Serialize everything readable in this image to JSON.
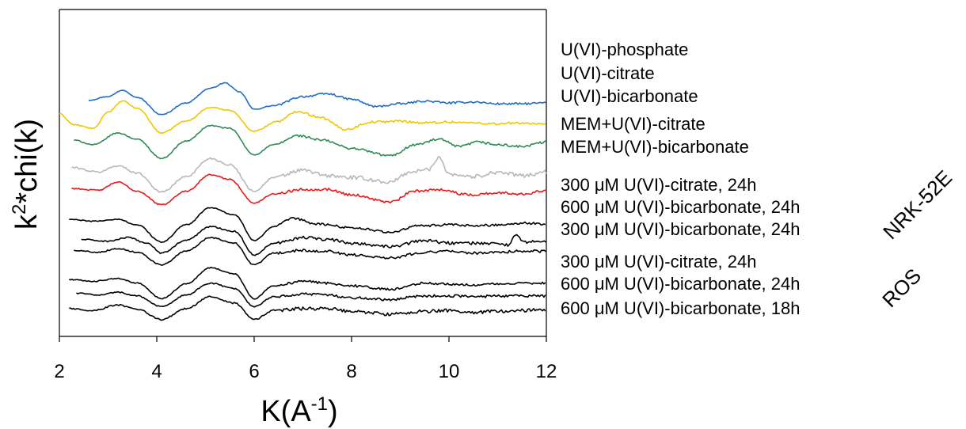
{
  "chart_data": {
    "type": "line",
    "xlabel": "K(A",
    "xlabel_sup": "-1",
    "xlabel_end": ")",
    "ylabel": "k",
    "ylabel_sup": "2",
    "ylabel_end": "*chi(k)",
    "xlim": [
      2,
      12
    ],
    "xticks": [
      "2",
      "4",
      "6",
      "8",
      "10",
      "12"
    ],
    "y_ticks_shown": false,
    "grid": false,
    "groups": [
      {
        "name": "NRK-52E"
      },
      {
        "name": "ROS"
      }
    ],
    "series": [
      {
        "name": "U(VI)-phosphate",
        "color": "#1F6FC5",
        "start": 2.6,
        "offset": 9.9,
        "noise": 0.03,
        "points": [
          [
            2.6,
            0.25
          ],
          [
            3.0,
            0.45
          ],
          [
            3.3,
            0.8
          ],
          [
            3.6,
            0.4
          ],
          [
            4.1,
            -0.55
          ],
          [
            4.6,
            0.1
          ],
          [
            5.1,
            0.9
          ],
          [
            5.4,
            1.2
          ],
          [
            5.7,
            0.7
          ],
          [
            6.0,
            -0.25
          ],
          [
            6.4,
            -0.05
          ],
          [
            7.0,
            0.45
          ],
          [
            7.5,
            0.6
          ],
          [
            8.0,
            0.3
          ],
          [
            8.5,
            -0.1
          ],
          [
            9.0,
            0.05
          ],
          [
            9.5,
            0.2
          ],
          [
            10,
            0.1
          ],
          [
            10.5,
            0.15
          ],
          [
            11,
            0.05
          ],
          [
            11.5,
            0.05
          ],
          [
            12,
            0.1
          ]
        ]
      },
      {
        "name": "U(VI)-citrate",
        "color": "#F2C500",
        "start": 2.0,
        "offset": 8.8,
        "noise": 0.035,
        "points": [
          [
            2.0,
            0.6
          ],
          [
            2.3,
            0.0
          ],
          [
            2.7,
            -0.2
          ],
          [
            3.0,
            0.7
          ],
          [
            3.3,
            1.3
          ],
          [
            3.6,
            0.9
          ],
          [
            4.1,
            -0.45
          ],
          [
            4.6,
            0.2
          ],
          [
            5.1,
            0.95
          ],
          [
            5.5,
            0.8
          ],
          [
            6.0,
            -0.35
          ],
          [
            6.5,
            0.2
          ],
          [
            6.9,
            0.75
          ],
          [
            7.3,
            0.45
          ],
          [
            7.9,
            -0.25
          ],
          [
            8.4,
            0.15
          ],
          [
            9.0,
            0.2
          ],
          [
            9.5,
            0.1
          ],
          [
            10,
            0.15
          ],
          [
            10.5,
            0.1
          ],
          [
            11,
            0.05
          ],
          [
            11.5,
            0.1
          ],
          [
            12,
            0.0
          ]
        ]
      },
      {
        "name": "U(VI)-bicarbonate",
        "color": "#2E8B57",
        "start": 2.3,
        "offset": 7.8,
        "noise": 0.035,
        "points": [
          [
            2.3,
            0.15
          ],
          [
            2.7,
            -0.1
          ],
          [
            3.2,
            0.55
          ],
          [
            3.6,
            0.2
          ],
          [
            4.1,
            -0.85
          ],
          [
            4.6,
            0.1
          ],
          [
            5.1,
            0.95
          ],
          [
            5.5,
            0.8
          ],
          [
            6.0,
            -0.65
          ],
          [
            6.4,
            -0.1
          ],
          [
            6.9,
            0.4
          ],
          [
            7.4,
            0.15
          ],
          [
            8.0,
            -0.3
          ],
          [
            8.8,
            -0.7
          ],
          [
            9.3,
            -0.1
          ],
          [
            9.8,
            0.2
          ],
          [
            10.2,
            -0.2
          ],
          [
            10.6,
            0.05
          ],
          [
            11,
            -0.1
          ],
          [
            11.5,
            -0.2
          ],
          [
            12,
            0.05
          ]
        ]
      },
      {
        "name": "MEM+U(VI)-citrate",
        "color": "#B8B8B8",
        "start": 2.25,
        "offset": 6.2,
        "noise": 0.06,
        "points": [
          [
            2.25,
            0.25
          ],
          [
            2.8,
            0.0
          ],
          [
            3.2,
            0.35
          ],
          [
            3.6,
            -0.05
          ],
          [
            4.1,
            -1.1
          ],
          [
            4.6,
            -0.25
          ],
          [
            5.1,
            0.75
          ],
          [
            5.5,
            0.4
          ],
          [
            6.0,
            -1.05
          ],
          [
            6.4,
            -0.3
          ],
          [
            7.0,
            0.1
          ],
          [
            7.5,
            -0.2
          ],
          [
            8.0,
            -0.3
          ],
          [
            8.8,
            -0.55
          ],
          [
            9.2,
            0.0
          ],
          [
            9.6,
            0.15
          ],
          [
            9.8,
            0.85
          ],
          [
            10.0,
            -0.1
          ],
          [
            10.5,
            -0.25
          ],
          [
            11,
            0.0
          ],
          [
            11.5,
            -0.2
          ],
          [
            12,
            0.0
          ]
        ]
      },
      {
        "name": "MEM+U(VI)-bicarbonate",
        "color": "#E8191B",
        "start": 2.25,
        "offset": 5.2,
        "noise": 0.04,
        "points": [
          [
            2.25,
            0.1
          ],
          [
            2.8,
            0.0
          ],
          [
            3.2,
            0.45
          ],
          [
            3.6,
            -0.05
          ],
          [
            4.1,
            -0.8
          ],
          [
            4.6,
            -0.05
          ],
          [
            5.1,
            0.85
          ],
          [
            5.5,
            0.6
          ],
          [
            6.0,
            -0.7
          ],
          [
            6.4,
            -0.2
          ],
          [
            7.0,
            0.05
          ],
          [
            7.5,
            0.05
          ],
          [
            8.0,
            -0.25
          ],
          [
            8.8,
            -0.65
          ],
          [
            9.3,
            -0.05
          ],
          [
            9.8,
            0.05
          ],
          [
            10.4,
            -0.25
          ],
          [
            11,
            -0.15
          ],
          [
            11.5,
            -0.2
          ],
          [
            12,
            0.0
          ]
        ]
      },
      {
        "name": "300 μM U(VI)-citrate, 24h",
        "color": "#000000",
        "start": 2.2,
        "offset": 3.3,
        "noise": 0.035,
        "points": [
          [
            2.2,
            0.3
          ],
          [
            2.7,
            0.2
          ],
          [
            3.2,
            0.3
          ],
          [
            3.6,
            0.0
          ],
          [
            4.1,
            -0.95
          ],
          [
            4.6,
            0.0
          ],
          [
            5.1,
            0.95
          ],
          [
            5.6,
            0.55
          ],
          [
            6.0,
            -0.85
          ],
          [
            6.4,
            -0.1
          ],
          [
            6.8,
            0.35
          ],
          [
            7.3,
            0.05
          ],
          [
            8.0,
            -0.15
          ],
          [
            8.8,
            -0.4
          ],
          [
            9.4,
            -0.05
          ],
          [
            10,
            0.0
          ],
          [
            10.5,
            -0.05
          ],
          [
            11,
            0.0
          ],
          [
            11.5,
            0.1
          ],
          [
            12,
            0.05
          ]
        ]
      },
      {
        "name": "600 μM U(VI)-bicarbonate, 24h",
        "color": "#000000",
        "start": 2.45,
        "offset": 2.4,
        "noise": 0.045,
        "points": [
          [
            2.45,
            0.1
          ],
          [
            3.0,
            0.0
          ],
          [
            3.4,
            0.2
          ],
          [
            3.8,
            -0.1
          ],
          [
            4.1,
            -0.65
          ],
          [
            4.6,
            0.05
          ],
          [
            5.1,
            0.8
          ],
          [
            5.6,
            0.55
          ],
          [
            6.0,
            -0.75
          ],
          [
            6.4,
            -0.1
          ],
          [
            7.0,
            0.2
          ],
          [
            7.5,
            0.1
          ],
          [
            8.0,
            -0.1
          ],
          [
            8.8,
            -0.3
          ],
          [
            9.5,
            0.05
          ],
          [
            10,
            -0.1
          ],
          [
            10.6,
            -0.1
          ],
          [
            11.2,
            -0.2
          ],
          [
            11.4,
            0.35
          ],
          [
            11.5,
            -0.05
          ],
          [
            12,
            0.0
          ]
        ]
      },
      {
        "name": "300 μM U(VI)-bicarbonate, 24h",
        "color": "#000000",
        "start": 2.3,
        "offset": 1.8,
        "noise": 0.04,
        "points": [
          [
            2.3,
            0.1
          ],
          [
            2.8,
            0.0
          ],
          [
            3.2,
            0.2
          ],
          [
            3.6,
            0.0
          ],
          [
            4.1,
            -0.7
          ],
          [
            4.6,
            0.05
          ],
          [
            5.1,
            0.8
          ],
          [
            5.6,
            0.5
          ],
          [
            6.0,
            -0.7
          ],
          [
            6.4,
            -0.05
          ],
          [
            7.0,
            0.1
          ],
          [
            7.5,
            0.05
          ],
          [
            8.0,
            -0.15
          ],
          [
            8.8,
            -0.3
          ],
          [
            9.5,
            0.0
          ],
          [
            10,
            0.05
          ],
          [
            10.5,
            -0.05
          ],
          [
            11,
            0.0
          ],
          [
            11.5,
            0.05
          ],
          [
            12,
            0.05
          ]
        ]
      },
      {
        "name": "300 μM U(VI)-citrate, 24h",
        "color": "#000000",
        "start": 2.2,
        "offset": 0.1,
        "noise": 0.035,
        "points": [
          [
            2.2,
            0.2
          ],
          [
            2.7,
            0.1
          ],
          [
            3.2,
            0.25
          ],
          [
            3.6,
            0.0
          ],
          [
            4.1,
            -0.85
          ],
          [
            4.6,
            -0.05
          ],
          [
            5.1,
            0.85
          ],
          [
            5.6,
            0.5
          ],
          [
            6.0,
            -0.85
          ],
          [
            6.4,
            -0.15
          ],
          [
            7.0,
            0.1
          ],
          [
            7.5,
            0.0
          ],
          [
            8.0,
            -0.15
          ],
          [
            8.8,
            -0.35
          ],
          [
            9.5,
            0.0
          ],
          [
            10,
            -0.05
          ],
          [
            10.5,
            -0.1
          ],
          [
            11,
            -0.05
          ],
          [
            11.5,
            0.0
          ],
          [
            12,
            0.0
          ]
        ]
      },
      {
        "name": "600 μM U(VI)-bicarbonate, 24h",
        "color": "#000000",
        "start": 2.35,
        "offset": -0.6,
        "noise": 0.04,
        "points": [
          [
            2.35,
            0.15
          ],
          [
            2.8,
            0.05
          ],
          [
            3.2,
            0.2
          ],
          [
            3.6,
            0.0
          ],
          [
            4.1,
            -0.6
          ],
          [
            4.6,
            0.05
          ],
          [
            5.1,
            0.7
          ],
          [
            5.6,
            0.4
          ],
          [
            6.0,
            -0.6
          ],
          [
            6.4,
            -0.05
          ],
          [
            7.0,
            0.1
          ],
          [
            7.5,
            0.05
          ],
          [
            8.0,
            -0.1
          ],
          [
            8.8,
            -0.2
          ],
          [
            9.5,
            0.0
          ],
          [
            10,
            0.0
          ],
          [
            10.5,
            -0.05
          ],
          [
            11,
            0.0
          ],
          [
            11.5,
            0.0
          ],
          [
            12,
            0.0
          ]
        ]
      },
      {
        "name": "600 μM U(VI)-bicarbonate, 18h",
        "color": "#000000",
        "start": 2.2,
        "offset": -1.35,
        "noise": 0.05,
        "points": [
          [
            2.2,
            0.05
          ],
          [
            2.7,
            -0.05
          ],
          [
            3.2,
            0.25
          ],
          [
            3.6,
            0.0
          ],
          [
            4.1,
            -0.55
          ],
          [
            4.6,
            0.05
          ],
          [
            5.1,
            0.7
          ],
          [
            5.6,
            0.35
          ],
          [
            6.0,
            -0.55
          ],
          [
            6.4,
            -0.05
          ],
          [
            7.0,
            0.05
          ],
          [
            7.5,
            0.05
          ],
          [
            8.0,
            -0.1
          ],
          [
            8.8,
            -0.25
          ],
          [
            9.5,
            -0.1
          ],
          [
            10,
            -0.05
          ],
          [
            10.5,
            -0.15
          ],
          [
            11,
            -0.1
          ],
          [
            11.5,
            -0.05
          ],
          [
            12,
            0.0
          ]
        ]
      }
    ]
  }
}
